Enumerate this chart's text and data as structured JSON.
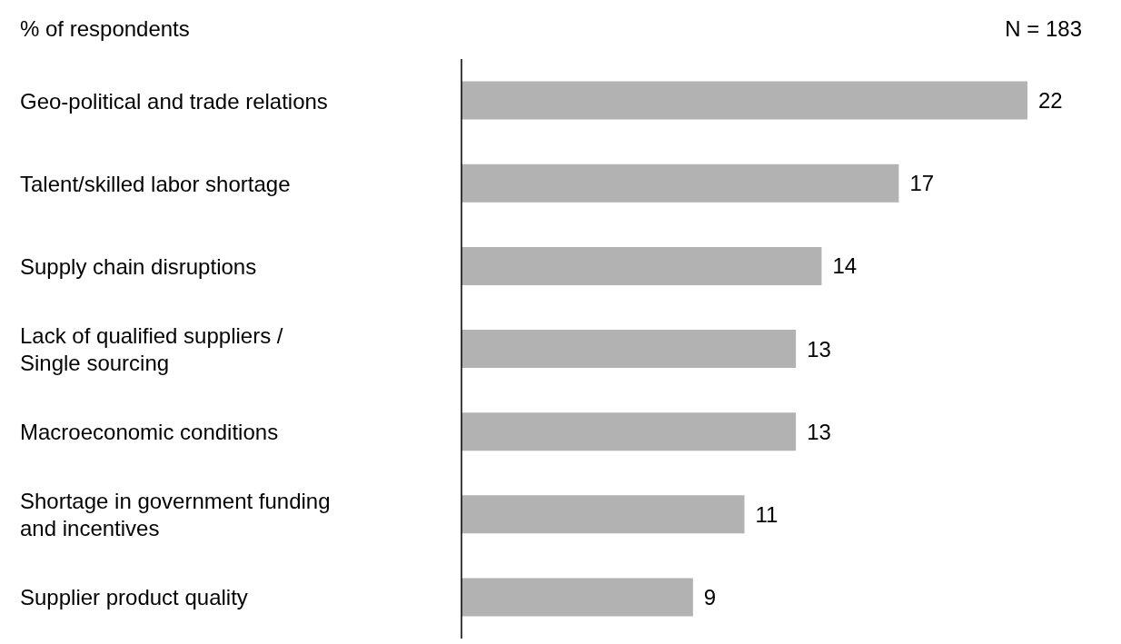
{
  "chart_data": {
    "type": "bar",
    "orientation": "horizontal",
    "categories": [
      "Geo-political and trade relations",
      "Talent/skilled labor shortage",
      "Supply chain disruptions",
      "Lack of qualified suppliers /\nSingle sourcing",
      "Macroeconomic conditions",
      "Shortage in government funding\nand incentives",
      "Supplier product quality"
    ],
    "values": [
      22,
      17,
      14,
      13,
      13,
      11,
      9
    ],
    "color": "#b2b2b2",
    "data_labels": true,
    "annotations": [
      "% of respondents",
      "N = 183"
    ],
    "grid": false,
    "legend": false
  }
}
